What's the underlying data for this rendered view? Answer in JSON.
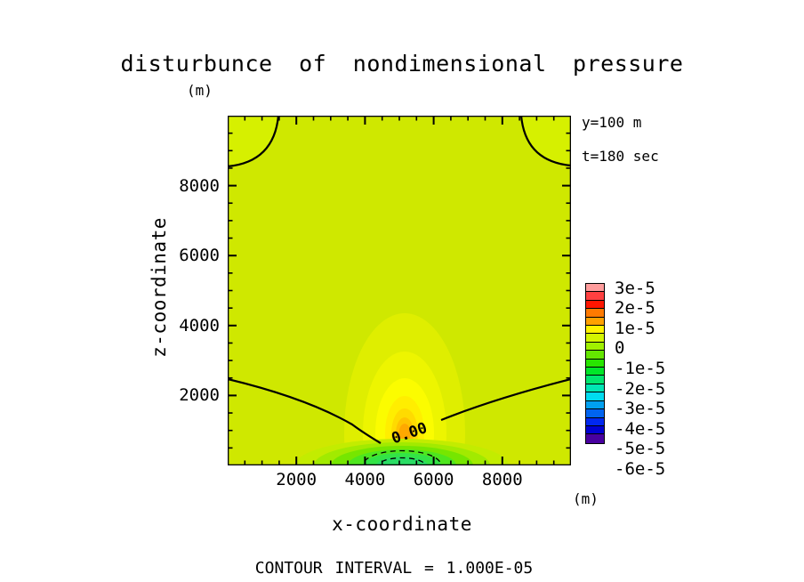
{
  "title": "disturbunce of nondimensional pressure",
  "plot": {
    "contour_label": "0.00",
    "footer": "CONTOUR INTERVAL = 1.000E-05",
    "annotation": {
      "line1": "y=100 m",
      "line2": "t=180 sec"
    }
  },
  "axes": {
    "x": {
      "label": "x-coordinate",
      "unit": "(m)",
      "tick_labels": [
        2000,
        4000,
        6000,
        8000
      ],
      "minor_step": 500,
      "range": [
        0,
        10000
      ]
    },
    "z": {
      "label": "z-coordinate",
      "unit": "(m)",
      "tick_labels": [
        2000,
        4000,
        6000,
        8000
      ],
      "minor_step": 500,
      "range": [
        0,
        10000
      ]
    }
  },
  "colorbar": {
    "labels": [
      "3e-5",
      "2e-5",
      "1e-5",
      "0",
      "-1e-5",
      "-2e-5",
      "-3e-5",
      "-4e-5",
      "-5e-5",
      "-6e-5"
    ],
    "cell_colors": [
      "#FF9C9C",
      "#FF4040",
      "#FF1600",
      "#FF7A00",
      "#FFA000",
      "#FFF200",
      "#D4F500",
      "#A0F000",
      "#64E600",
      "#28E600",
      "#00E628",
      "#00E66E",
      "#00E6B4",
      "#00DCF0",
      "#00A0F0",
      "#0064F0",
      "#0028F0",
      "#0000D2",
      "#4800A0"
    ]
  },
  "chart_data": {
    "type": "heatmap",
    "title": "disturbunce of nondimensional pressure",
    "xlabel": "x-coordinate (m)",
    "ylabel": "z-coordinate (m)",
    "x_range": [
      0,
      10000
    ],
    "z_range": [
      0,
      10000
    ],
    "x_major_ticks": [
      2000,
      4000,
      6000,
      8000
    ],
    "z_major_ticks": [
      2000,
      4000,
      6000,
      8000
    ],
    "minor_tick_step": 500,
    "contour_interval": 1e-05,
    "colorbar_levels": [
      "3e-5",
      "2e-5",
      "1e-5",
      "0",
      "-1e-5",
      "-2e-5",
      "-3e-5",
      "-4e-5",
      "-5e-5",
      "-6e-5"
    ],
    "slice_annotation": "y=100 m",
    "time_annotation": "t=180 sec",
    "background_value_band": "approximately 0 (yellow-green fill over most of domain)",
    "features": [
      {
        "name": "positive-pressure-anomaly",
        "center_x": 5200,
        "center_z": 900,
        "peak_value": 1.5e-05,
        "description": "vertically elongated teardrop of filled contours, yellow rings grading to orange core near the lower boundary"
      },
      {
        "name": "negative-pressure-anomaly",
        "center_x": 5000,
        "center_z": 100,
        "peak_value": -2e-05,
        "description": "green filled contours hugging the bottom boundary between x≈3500-6500 with two nested dashed negative contour ellipses"
      },
      {
        "name": "zero-contour",
        "value": 0,
        "description": "solid line labeled 0.00; crosses left edge at z≈2500, dips to z≈700 near x≈5000, rises to right edge at z≈2400"
      },
      {
        "name": "upper-corner-zero-contours",
        "value": 0,
        "description": "quarter-circle solid arcs in the top-left and top-right corners near z≈10000"
      }
    ]
  }
}
